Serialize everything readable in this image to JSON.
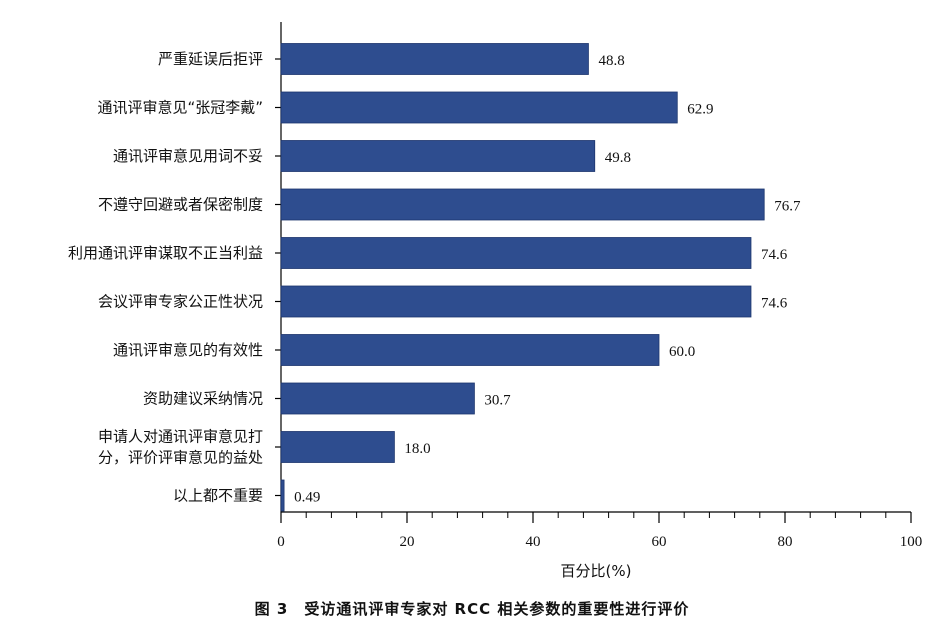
{
  "caption": "图 3　受访通讯评审专家对 RCC 相关参数的重要性进行评价",
  "colors": {
    "bar": "#2e4d8f",
    "bar_edge": "#1c356d",
    "axis": "#000000"
  },
  "chart_data": {
    "type": "bar",
    "orientation": "horizontal",
    "categories": [
      [
        "严重延误后拒评"
      ],
      [
        "通讯评审意见“张冠李戴”"
      ],
      [
        "通讯评审意见用词不妥"
      ],
      [
        "不遵守回避或者保密制度"
      ],
      [
        "利用通讯评审谋取不正当利益"
      ],
      [
        "会议评审专家公正性状况"
      ],
      [
        "通讯评审意见的有效性"
      ],
      [
        "资助建议采纳情况"
      ],
      [
        "申请人对通讯评审意见打",
        "分，评价评审意见的益处"
      ],
      [
        "以上都不重要"
      ]
    ],
    "values": [
      48.8,
      62.9,
      49.8,
      76.7,
      74.6,
      74.6,
      60.0,
      30.7,
      18.0,
      0.49
    ],
    "value_labels": [
      "48.8",
      "62.9",
      "49.8",
      "76.7",
      "74.6",
      "74.6",
      "60.0",
      "30.7",
      "18.0",
      "0.49"
    ],
    "xlabel": "百分比(%)",
    "xlim": [
      0,
      100
    ],
    "xticks": [
      0,
      20,
      40,
      60,
      80,
      100
    ],
    "xtick_labels": [
      "0",
      "20",
      "40",
      "60",
      "80",
      "100"
    ],
    "minor_tick_step": 4,
    "grid": false,
    "legend": "none"
  }
}
